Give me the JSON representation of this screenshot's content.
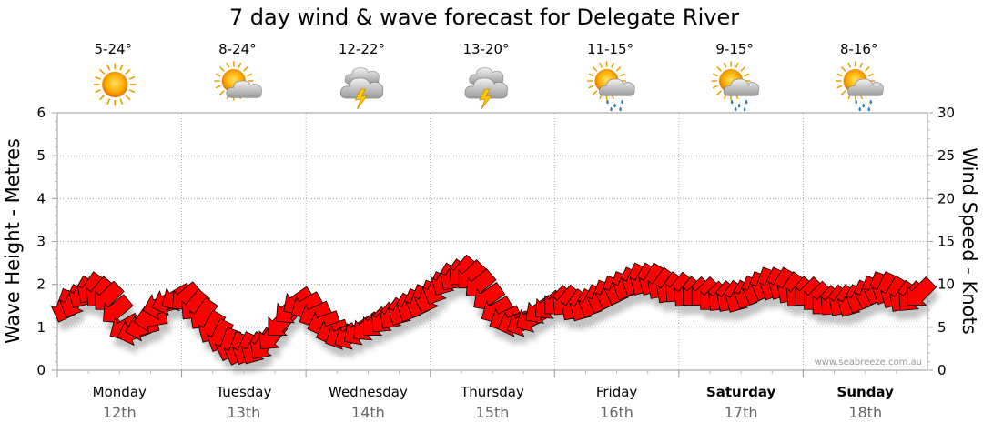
{
  "chart_data": {
    "type": "line",
    "title": "7 day wind & wave forecast for Delegate River",
    "ylabel_left": "Wave Height - Metres",
    "ylabel_right": "Wind Speed - Knots",
    "ylim_left": [
      0,
      6
    ],
    "ylim_right": [
      0,
      30
    ],
    "yticks_left": [
      "0",
      "1",
      "2",
      "3",
      "4",
      "5",
      "6"
    ],
    "yticks_right": [
      "0",
      "5",
      "10",
      "15",
      "20",
      "25",
      "30"
    ],
    "grid": true,
    "credit": "www.seabreeze.com.au",
    "days": [
      {
        "name": "Monday",
        "date": "12th",
        "temp": "5-24°",
        "icon": "sun-icon",
        "bold": false
      },
      {
        "name": "Tuesday",
        "date": "13th",
        "temp": "8-24°",
        "icon": "sun-cloud-icon",
        "bold": false
      },
      {
        "name": "Wednesday",
        "date": "14th",
        "temp": "12-22°",
        "icon": "storm-icon",
        "bold": false
      },
      {
        "name": "Thursday",
        "date": "15th",
        "temp": "13-20°",
        "icon": "storm-icon",
        "bold": false
      },
      {
        "name": "Friday",
        "date": "16th",
        "temp": "11-15°",
        "icon": "sun-rain-icon",
        "bold": false
      },
      {
        "name": "Saturday",
        "date": "17th",
        "temp": "9-15°",
        "icon": "sun-rain-icon",
        "bold": true
      },
      {
        "name": "Sunday",
        "date": "18th",
        "temp": "8-16°",
        "icon": "sun-rain-icon",
        "bold": true
      }
    ],
    "series": [
      {
        "kind": "wind-arrows",
        "color": "#ff0000",
        "wind_knots": [
          7.5,
          8,
          9,
          9.5,
          9,
          8.5,
          7,
          5,
          4.5,
          5,
          6,
          7.5,
          8,
          8.5,
          8.5,
          7.5,
          6.5,
          5,
          4,
          3,
          2.5,
          2.5,
          2.5,
          3,
          4,
          5.5,
          7,
          8,
          7.5,
          6.5,
          5.5,
          4.5,
          4,
          4,
          4.5,
          5,
          5.5,
          6,
          6.5,
          7,
          7.5,
          8,
          8.5,
          9.5,
          10.5,
          11,
          11.5,
          11,
          10,
          8.5,
          7,
          6,
          5.5,
          5.5,
          6,
          7,
          7.5,
          8,
          8,
          7.5,
          7.5,
          8,
          8.5,
          9,
          9.5,
          10,
          10.5,
          10.5,
          10.5,
          10,
          9.5,
          9.5,
          9,
          9,
          9,
          8.5,
          8.5,
          8.5,
          8.5,
          9,
          9.5,
          10,
          10,
          10,
          9.5,
          9,
          9,
          8.5,
          8,
          8,
          8,
          8,
          8.5,
          9,
          9.5,
          9.5,
          9,
          8.5,
          8.5,
          9
        ],
        "wind_dir_deg": [
          200,
          205,
          210,
          215,
          220,
          225,
          230,
          240,
          250,
          255,
          260,
          255,
          250,
          240,
          230,
          220,
          215,
          210,
          205,
          200,
          200,
          205,
          210,
          215,
          220,
          225,
          230,
          235,
          240,
          245,
          250,
          250,
          245,
          240,
          235,
          230,
          225,
          220,
          215,
          210,
          205,
          200,
          200,
          205,
          210,
          215,
          220,
          225,
          230,
          235,
          240,
          245,
          250,
          245,
          240,
          235,
          230,
          225,
          220,
          215,
          210,
          205,
          200,
          200,
          200,
          205,
          205,
          210,
          210,
          215,
          215,
          220,
          220,
          225,
          225,
          225,
          220,
          215,
          210,
          205,
          200,
          200,
          205,
          210,
          215,
          220,
          225,
          225,
          225,
          220,
          215,
          210,
          205,
          200,
          200,
          205,
          210,
          215,
          220,
          225
        ]
      }
    ]
  }
}
